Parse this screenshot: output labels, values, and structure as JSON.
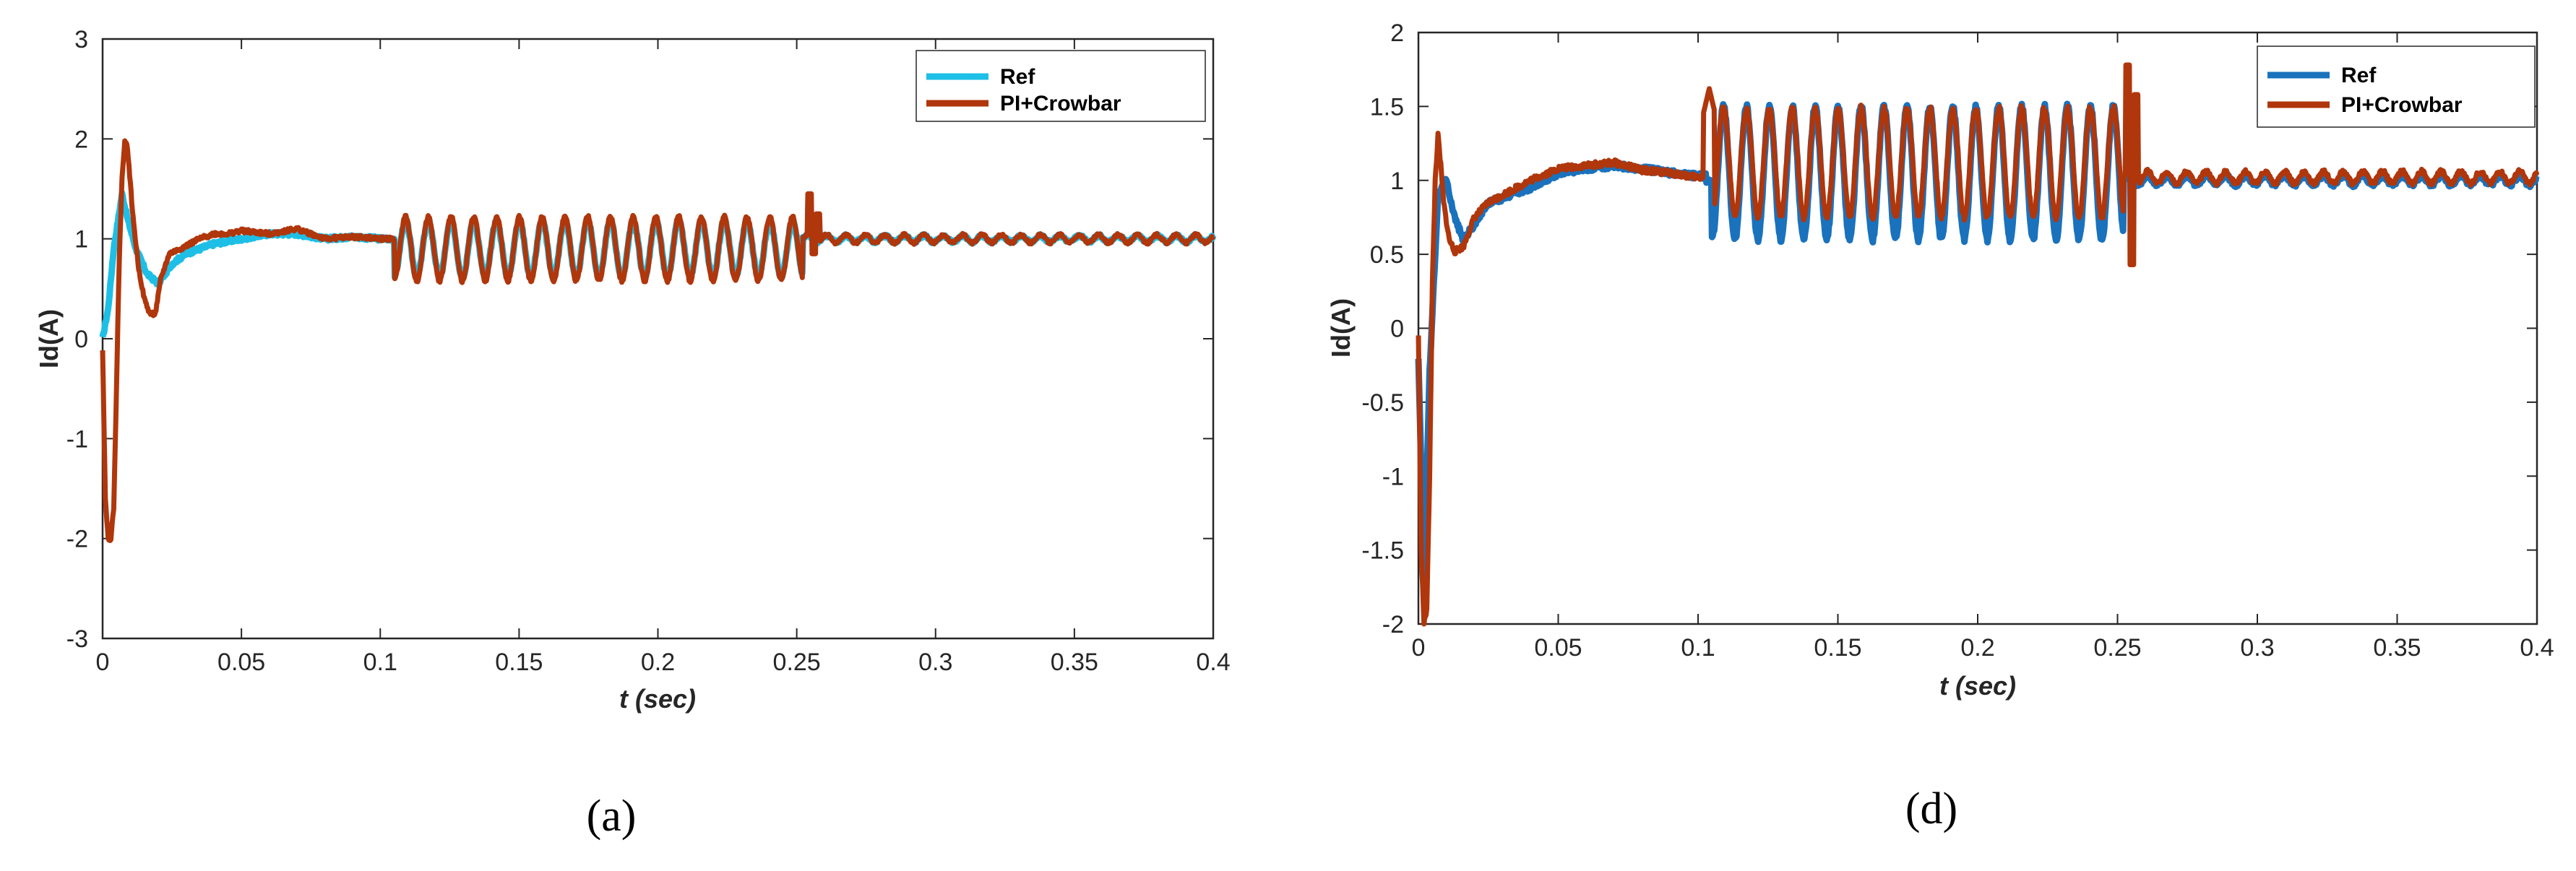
{
  "colors": {
    "ref_a": "#1EBFE6",
    "ref_d": "#1A72BD",
    "pi_crowbar": "#B0360C",
    "axis": "#262626",
    "grid": "#e6e6e6"
  },
  "chart_data": [
    {
      "type": "line",
      "panel_label": "(a)",
      "xlabel": "t (sec)",
      "ylabel": "Id(A)",
      "xlim": [
        0,
        0.4
      ],
      "ylim": [
        -3,
        3
      ],
      "xticks": [
        "0",
        "0.05",
        "0.1",
        "0.15",
        "0.2",
        "0.25",
        "0.3",
        "0.35",
        "0.4"
      ],
      "yticks": [
        "-3",
        "-2",
        "-1",
        "0",
        "1",
        "2",
        "3"
      ],
      "legend_position": "top-right",
      "fault_window": [
        0.105,
        0.252
      ],
      "series": [
        {
          "name": "Ref",
          "color_key": "ref_a",
          "x": [
            0,
            0.002,
            0.004,
            0.007,
            0.009,
            0.012,
            0.016,
            0.02,
            0.025,
            0.03,
            0.04,
            0.05,
            0.06,
            0.07,
            0.08,
            0.09,
            0.1,
            0.105
          ],
          "y": [
            0,
            0.3,
            0.9,
            1.45,
            1.2,
            0.9,
            0.65,
            0.55,
            0.75,
            0.85,
            0.95,
            1.0,
            1.05,
            1.05,
            1.0,
            1.02,
            1.0,
            1.0
          ],
          "osc_mean": 0.9,
          "osc_amp": 0.28,
          "osc_period": 0.0082,
          "post_fault_value": 1.0,
          "post_fault_ripple": 0.03
        },
        {
          "name": "PI+Crowbar",
          "color_key": "pi_crowbar",
          "x": [
            0,
            0.001,
            0.002,
            0.003,
            0.004,
            0.005,
            0.006,
            0.007,
            0.008,
            0.009,
            0.011,
            0.013,
            0.015,
            0.017,
            0.019,
            0.021,
            0.024,
            0.028,
            0.035,
            0.04,
            0.045,
            0.05,
            0.06,
            0.07,
            0.08,
            0.09,
            0.1,
            0.105
          ],
          "y": [
            -0.1,
            -1.6,
            -2.0,
            -2.0,
            -1.7,
            -0.5,
            0.8,
            1.6,
            2.0,
            1.9,
            1.2,
            0.7,
            0.4,
            0.25,
            0.25,
            0.6,
            0.85,
            0.9,
            1.0,
            1.05,
            1.05,
            1.08,
            1.05,
            1.1,
            1.0,
            1.02,
            1.0,
            1.0
          ],
          "osc_mean": 0.9,
          "osc_amp": 0.32,
          "osc_period": 0.0082,
          "post_fault_value": 1.0,
          "post_fault_ripple": 0.04,
          "spike": {
            "x": 0.254,
            "y_max": 1.45,
            "y_min": 0.85
          }
        }
      ]
    },
    {
      "type": "line",
      "panel_label": "(d)",
      "xlabel": "t (sec)",
      "ylabel": "Id(A)",
      "xlim": [
        0,
        0.4
      ],
      "ylim": [
        -2,
        2
      ],
      "xticks": [
        "0",
        "0.05",
        "0.1",
        "0.15",
        "0.2",
        "0.25",
        "0.3",
        "0.35",
        "0.4"
      ],
      "yticks": [
        "-2",
        "-1.5",
        "-1",
        "-0.5",
        "0",
        "0.5",
        "1",
        "1.5",
        "2"
      ],
      "legend_position": "top-right",
      "fault_window": [
        0.105,
        0.252
      ],
      "series": [
        {
          "name": "Ref",
          "color_key": "ref_d",
          "x": [
            0,
            0.002,
            0.004,
            0.007,
            0.01,
            0.013,
            0.016,
            0.02,
            0.025,
            0.03,
            0.04,
            0.05,
            0.06,
            0.07,
            0.08,
            0.09,
            0.1,
            0.103
          ],
          "y": [
            -0.2,
            -1.7,
            -0.3,
            0.9,
            1.0,
            0.75,
            0.6,
            0.7,
            0.85,
            0.88,
            0.95,
            1.05,
            1.08,
            1.1,
            1.08,
            1.05,
            1.03,
            1.03
          ],
          "osc_mean": 1.05,
          "osc_amp": 0.45,
          "osc_period": 0.0082,
          "post_fault_value": 1.0,
          "post_fault_ripple": 0.03
        },
        {
          "name": "PI+Crowbar",
          "color_key": "pi_crowbar",
          "x": [
            0,
            0.001,
            0.002,
            0.003,
            0.004,
            0.005,
            0.006,
            0.007,
            0.008,
            0.009,
            0.011,
            0.013,
            0.016,
            0.02,
            0.025,
            0.03,
            0.04,
            0.05,
            0.06,
            0.07,
            0.08,
            0.09,
            0.1,
            0.103
          ],
          "y": [
            -0.05,
            -1.5,
            -2.0,
            -1.9,
            -1.0,
            0.3,
            1.0,
            1.3,
            1.1,
            0.85,
            0.6,
            0.52,
            0.55,
            0.75,
            0.85,
            0.9,
            1.0,
            1.08,
            1.1,
            1.12,
            1.07,
            1.05,
            1.02,
            1.02
          ],
          "osc_mean": 1.12,
          "osc_amp": 0.37,
          "osc_period": 0.0082,
          "post_fault_value": 1.02,
          "post_fault_ripple": 0.04,
          "pre_fault_bump": {
            "x": 0.104,
            "y": 1.62
          },
          "spike": {
            "x": 0.253,
            "y_max": 1.78,
            "y_min": 0.43
          }
        }
      ]
    }
  ]
}
